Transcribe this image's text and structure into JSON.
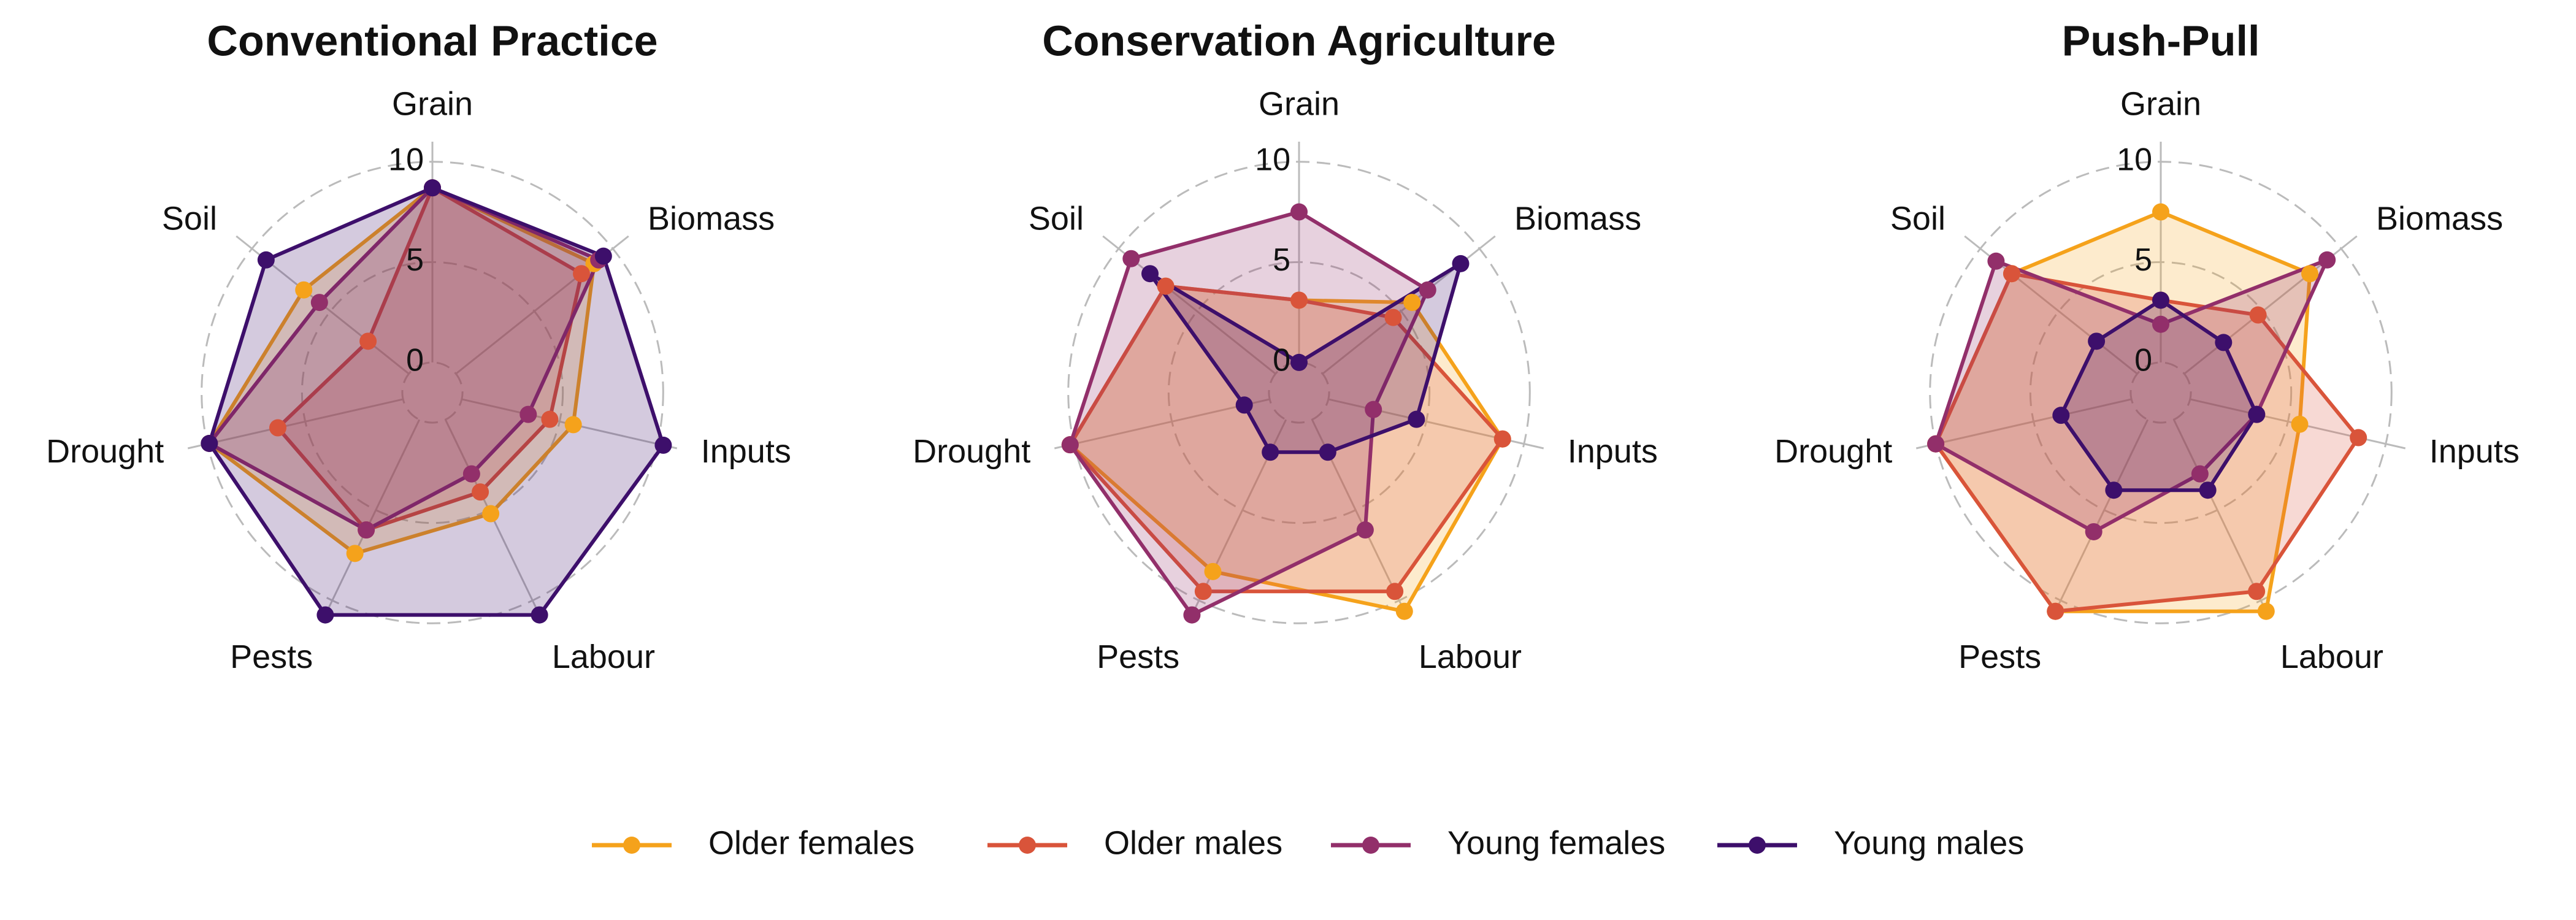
{
  "chart_data": [
    {
      "type": "radar",
      "title": "Conventional Practice",
      "categories": [
        "Grain",
        "Biomass",
        "Inputs",
        "Labour",
        "Pests",
        "Drought",
        "Soil"
      ],
      "ylim": [
        -1.5,
        11
      ],
      "yticks": [
        0,
        5,
        10
      ],
      "series": [
        {
          "name": "Older females",
          "color": "#f5a21b",
          "values": [
            8.7,
            8.8,
            5.7,
            5.2,
            7.4,
            9.9,
            6.7
          ]
        },
        {
          "name": "Older males",
          "color": "#d9543a",
          "values": [
            8.7,
            8.0,
            4.5,
            4.0,
            6.1,
            6.4,
            2.6
          ]
        },
        {
          "name": "Young females",
          "color": "#922f6a",
          "values": [
            8.7,
            9.1,
            3.4,
            3.0,
            6.1,
            9.9,
            5.7
          ]
        },
        {
          "name": "Young males",
          "color": "#3d0f6b",
          "values": [
            8.7,
            9.4,
            10.3,
            10.8,
            10.8,
            9.9,
            9.1
          ]
        }
      ]
    },
    {
      "type": "radar",
      "title": "Conservation Agriculture",
      "categories": [
        "Grain",
        "Biomass",
        "Inputs",
        "Labour",
        "Pests",
        "Drought",
        "Soil"
      ],
      "ylim": [
        -1.5,
        11
      ],
      "yticks": [
        0,
        5,
        10
      ],
      "series": [
        {
          "name": "Older females",
          "color": "#f5a21b",
          "values": [
            3.1,
            5.7,
            8.9,
            10.6,
            8.4,
            10.2,
            7.0
          ]
        },
        {
          "name": "Older males",
          "color": "#d9543a",
          "values": [
            3.1,
            4.5,
            8.9,
            9.5,
            9.5,
            10.2,
            7.0
          ]
        },
        {
          "name": "Young females",
          "color": "#922f6a",
          "values": [
            7.5,
            6.7,
            2.3,
            6.1,
            10.8,
            10.2,
            9.2
          ]
        },
        {
          "name": "Young males",
          "color": "#3d0f6b",
          "values": [
            0,
            8.8,
            4.5,
            1.8,
            1.8,
            1.3,
            8.0
          ]
        }
      ]
    },
    {
      "type": "radar",
      "title": "Push-Pull",
      "categories": [
        "Grain",
        "Biomass",
        "Inputs",
        "Labour",
        "Pests",
        "Drought",
        "Soil"
      ],
      "ylim": [
        -1.5,
        11
      ],
      "yticks": [
        0,
        5,
        10
      ],
      "series": [
        {
          "name": "Older females",
          "color": "#f5a21b",
          "values": [
            7.5,
            8.0,
            5.6,
            10.6,
            10.6,
            10.0,
            8.0
          ]
        },
        {
          "name": "Older males",
          "color": "#d9543a",
          "values": [
            3.1,
            4.7,
            8.6,
            9.5,
            10.6,
            10.0,
            8.0
          ]
        },
        {
          "name": "Young females",
          "color": "#922f6a",
          "values": [
            1.9,
            9.1,
            3.4,
            3.0,
            6.2,
            10.0,
            9.0
          ]
        },
        {
          "name": "Young males",
          "color": "#3d0f6b",
          "values": [
            3.1,
            2.5,
            3.4,
            3.9,
            3.9,
            3.6,
            2.6
          ]
        }
      ]
    }
  ]
}
